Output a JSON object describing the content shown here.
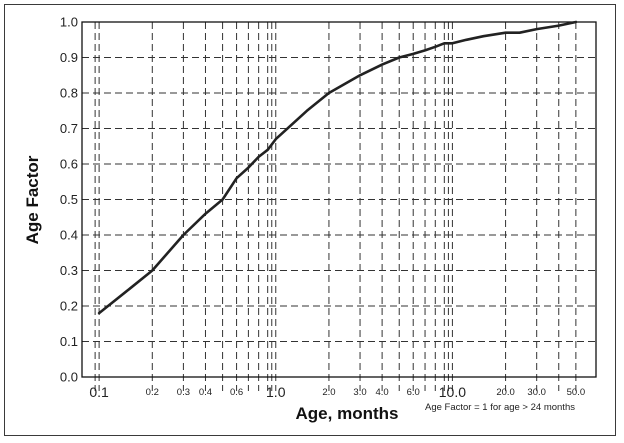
{
  "chart_data": {
    "type": "line",
    "title": "",
    "xlabel": "Age, months",
    "ylabel": "Age Factor",
    "xscale": "log",
    "xlim": [
      0.08,
      65
    ],
    "ylim": [
      0.0,
      1.0
    ],
    "grid": "dashed",
    "legend": "none",
    "yticks": [
      "0.0",
      "0.1",
      "0.2",
      "0.3",
      "0.4",
      "0.5",
      "0.6",
      "0.7",
      "0.8",
      "0.9",
      "1.0"
    ],
    "xticks": [
      {
        "value": 0.1,
        "label": "0.1",
        "major": true
      },
      {
        "value": 0.2,
        "label": "0.2",
        "major": false
      },
      {
        "value": 0.3,
        "label": "0.3",
        "major": false
      },
      {
        "value": 0.4,
        "label": "0.4",
        "major": false
      },
      {
        "value": 0.6,
        "label": "0.6",
        "major": false
      },
      {
        "value": 1.0,
        "label": "1.0",
        "major": true
      },
      {
        "value": 2.0,
        "label": "2.0",
        "major": false
      },
      {
        "value": 3.0,
        "label": "3.0",
        "major": false
      },
      {
        "value": 4.0,
        "label": "4.0",
        "major": false
      },
      {
        "value": 6.0,
        "label": "6.0",
        "major": false
      },
      {
        "value": 10.0,
        "label": "10.0",
        "major": true
      },
      {
        "value": 20.0,
        "label": "20.0",
        "major": false
      },
      {
        "value": 30.0,
        "label": "30.0",
        "major": false
      },
      {
        "value": 50.0,
        "label": "50.0",
        "major": false
      }
    ],
    "gridlines_x": [
      0.1,
      0.2,
      0.3,
      0.4,
      0.5,
      0.6,
      0.7,
      0.8,
      0.9,
      1,
      2,
      3,
      4,
      5,
      6,
      7,
      8,
      9,
      10,
      20,
      30,
      40,
      50
    ],
    "annotation": "Age Factor = 1 for age > 24 months",
    "series": [
      {
        "x": [
          0.1,
          0.15,
          0.2,
          0.3,
          0.4,
          0.5,
          0.6,
          0.7,
          0.8,
          0.9,
          1.0,
          1.5,
          2.0,
          3.0,
          4.0,
          5.0,
          6.0,
          7.0,
          8.0,
          9.0,
          10.0,
          12.0,
          15.0,
          20.0,
          24.0,
          30.0,
          40.0,
          50.0
        ],
        "values": [
          0.18,
          0.25,
          0.3,
          0.4,
          0.46,
          0.5,
          0.56,
          0.59,
          0.62,
          0.64,
          0.67,
          0.75,
          0.8,
          0.85,
          0.88,
          0.9,
          0.91,
          0.92,
          0.93,
          0.94,
          0.94,
          0.95,
          0.96,
          0.97,
          0.97,
          0.98,
          0.99,
          1.0
        ]
      }
    ]
  }
}
